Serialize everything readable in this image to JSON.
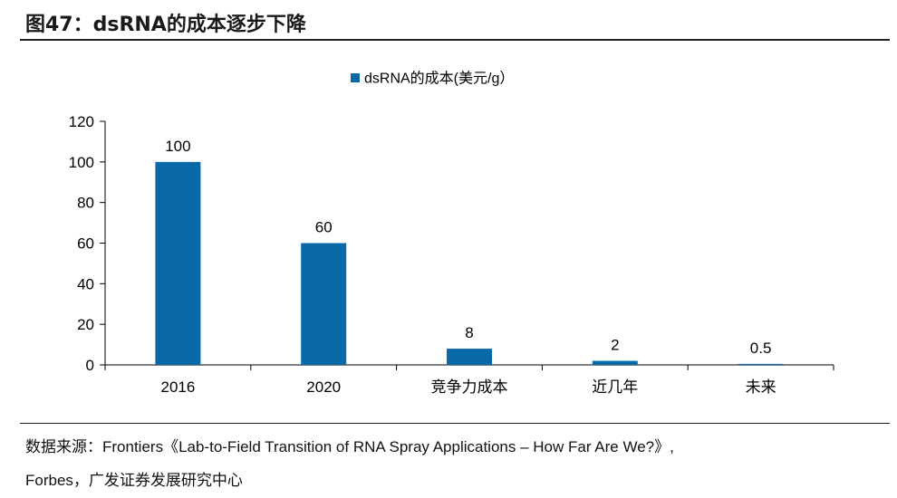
{
  "header": {
    "title": "图47：dsRNA的成本逐步下降"
  },
  "chart_data": {
    "type": "bar",
    "title": "",
    "xlabel": "",
    "ylabel": "",
    "legend": {
      "position": "top-center"
    },
    "categories": [
      "2016",
      "2020",
      "竞争力成本",
      "近几年",
      "未来"
    ],
    "series": [
      {
        "name": "dsRNA的成本(美元/g）",
        "values": [
          100,
          60,
          8,
          2,
          0.5
        ],
        "color": "#0a6aa8"
      }
    ],
    "data_labels": [
      "100",
      "60",
      "8",
      "2",
      "0.5"
    ],
    "ylim": [
      0,
      120
    ],
    "yticks": [
      0,
      20,
      40,
      60,
      80,
      100,
      120
    ],
    "grid": false
  },
  "footer": {
    "source_line1": "数据来源：Frontiers《Lab-to-Field Transition of RNA Spray Applications – How Far Are We?》,",
    "source_line2": "Forbes，广发证券发展研究中心"
  }
}
